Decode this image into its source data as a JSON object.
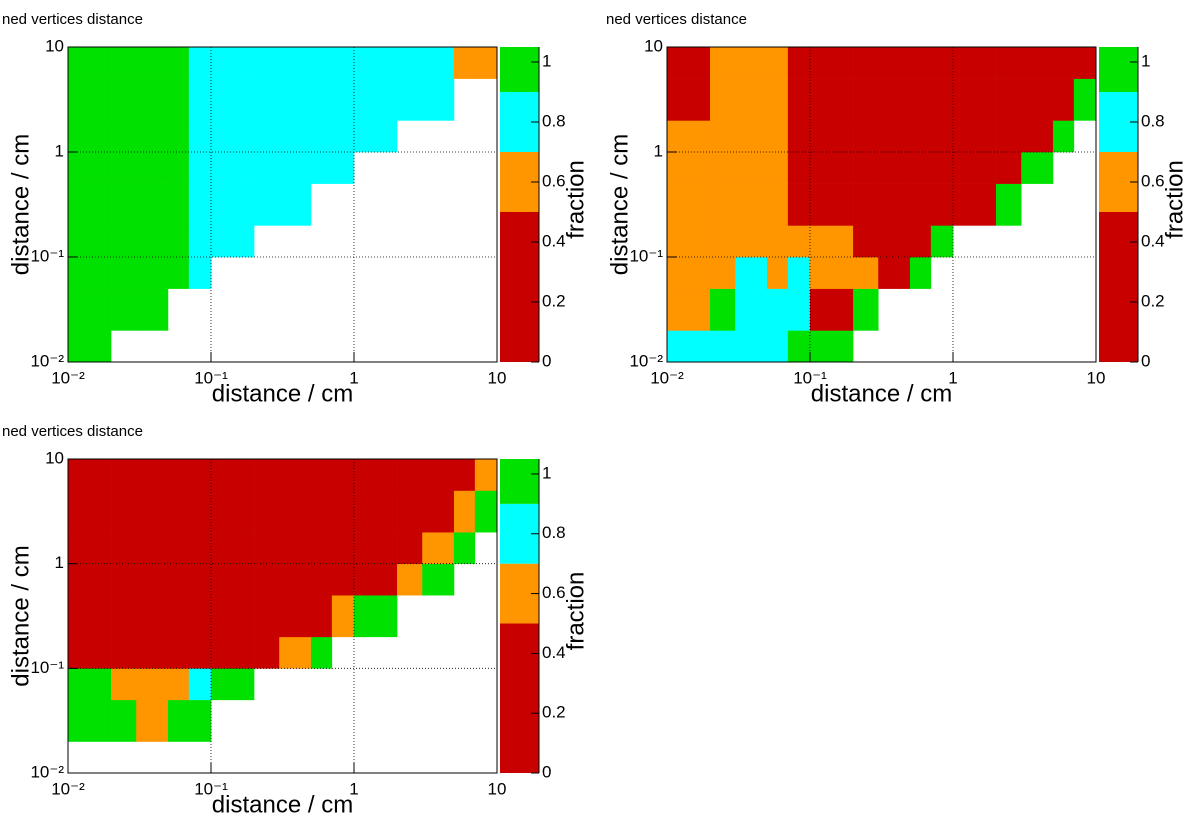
{
  "chart_data": [
    {
      "type": "heatmap",
      "title": "ned vertices distance",
      "xlabel": "distance / cm",
      "ylabel": "distance / cm",
      "zlabel": "fraction",
      "log_x": true,
      "log_y": true,
      "grid": true,
      "xlim": [
        0.01,
        10
      ],
      "ylim": [
        0.01,
        10
      ],
      "zlim": [
        0,
        1.05
      ],
      "xticks": [
        {
          "value": 0.01,
          "label": "10⁻²"
        },
        {
          "value": 0.1,
          "label": "10⁻¹"
        },
        1,
        10
      ],
      "yticks": [
        {
          "value": 0.01,
          "label": "10⁻²"
        },
        {
          "value": 0.1,
          "label": "10⁻¹"
        },
        1,
        10
      ],
      "zticks": [
        0,
        0.2,
        0.4,
        0.6,
        0.8,
        1
      ],
      "palette": [
        {
          "min": 0,
          "max": 0.5,
          "color": "#c80000"
        },
        {
          "min": 0.5,
          "max": 0.7,
          "color": "#ff9600"
        },
        {
          "min": 0.7,
          "max": 0.9,
          "color": "#00ffff"
        },
        {
          "min": 0.9,
          "max": 1.05,
          "color": "#00e100"
        }
      ],
      "xbins": [
        0.01,
        0.02,
        0.03,
        0.05,
        0.07,
        0.1,
        0.2,
        0.3,
        0.5,
        0.7,
        1,
        2,
        3,
        5,
        7,
        10
      ],
      "ybins": [
        0.01,
        0.02,
        0.05,
        0.1,
        0.2,
        0.5,
        1,
        2,
        5,
        10
      ],
      "z": [
        [
          1,
          null,
          null,
          null,
          null,
          null,
          null,
          null,
          null,
          null,
          null,
          null,
          null,
          null,
          null
        ],
        [
          1,
          1,
          1,
          null,
          null,
          null,
          null,
          null,
          null,
          null,
          null,
          null,
          null,
          null,
          null
        ],
        [
          1,
          1,
          1,
          1,
          0.85,
          null,
          null,
          null,
          null,
          null,
          null,
          null,
          null,
          null,
          null
        ],
        [
          1,
          1,
          1,
          1,
          0.85,
          0.85,
          null,
          null,
          null,
          null,
          null,
          null,
          null,
          null,
          null
        ],
        [
          1,
          1,
          1,
          1,
          0.85,
          0.85,
          0.85,
          0.85,
          null,
          null,
          null,
          null,
          null,
          null,
          null
        ],
        [
          1,
          1,
          1,
          1,
          0.85,
          0.85,
          0.85,
          0.85,
          0.85,
          0.85,
          null,
          null,
          null,
          null,
          null
        ],
        [
          1,
          1,
          1,
          1,
          0.85,
          0.85,
          0.85,
          0.85,
          0.85,
          0.85,
          0.85,
          null,
          null,
          null,
          null
        ],
        [
          1,
          1,
          1,
          1,
          0.85,
          0.85,
          0.85,
          0.85,
          0.85,
          0.85,
          0.85,
          0.85,
          0.8,
          null,
          null
        ],
        [
          1,
          1,
          1,
          1,
          0.85,
          0.85,
          0.85,
          0.85,
          0.85,
          0.85,
          0.85,
          0.8,
          0.75,
          0.7,
          0.65
        ]
      ]
    },
    {
      "type": "heatmap",
      "title": "ned vertices distance",
      "xlabel": "distance / cm",
      "ylabel": "distance / cm",
      "zlabel": "fraction",
      "log_x": true,
      "log_y": true,
      "grid": true,
      "xlim": [
        0.01,
        10
      ],
      "ylim": [
        0.01,
        10
      ],
      "zlim": [
        0,
        1.05
      ],
      "xticks": [
        {
          "value": 0.01,
          "label": "10⁻²"
        },
        {
          "value": 0.1,
          "label": "10⁻¹"
        },
        1,
        10
      ],
      "yticks": [
        {
          "value": 0.01,
          "label": "10⁻²"
        },
        {
          "value": 0.1,
          "label": "10⁻¹"
        },
        1,
        10
      ],
      "zticks": [
        0,
        0.2,
        0.4,
        0.6,
        0.8,
        1
      ],
      "palette": [
        {
          "min": 0,
          "max": 0.5,
          "color": "#c80000"
        },
        {
          "min": 0.5,
          "max": 0.7,
          "color": "#ff9600"
        },
        {
          "min": 0.7,
          "max": 0.9,
          "color": "#00ffff"
        },
        {
          "min": 0.9,
          "max": 1.05,
          "color": "#00e100"
        }
      ],
      "xbins": [
        0.01,
        0.02,
        0.03,
        0.05,
        0.07,
        0.1,
        0.2,
        0.3,
        0.5,
        0.7,
        1,
        2,
        3,
        5,
        7,
        10
      ],
      "ybins": [
        0.01,
        0.02,
        0.05,
        0.1,
        0.2,
        0.5,
        1,
        2,
        5,
        10
      ],
      "z": [
        [
          0.8,
          0.8,
          0.8,
          0.8,
          1,
          1,
          null,
          null,
          null,
          null,
          null,
          null,
          null,
          null,
          null
        ],
        [
          0.6,
          1,
          0.8,
          0.8,
          0.8,
          0.3,
          1,
          null,
          null,
          null,
          null,
          null,
          null,
          null,
          null
        ],
        [
          0.6,
          0.6,
          0.8,
          0.6,
          0.8,
          0.6,
          0.6,
          0.3,
          1,
          null,
          null,
          null,
          null,
          null,
          null
        ],
        [
          0.6,
          0.6,
          0.6,
          0.6,
          0.6,
          0.6,
          0.3,
          0.3,
          0.3,
          1,
          null,
          null,
          null,
          null,
          null
        ],
        [
          0.6,
          0.6,
          0.6,
          0.6,
          0.3,
          0.3,
          0.3,
          0.3,
          0.3,
          0.3,
          0.3,
          1,
          null,
          null,
          null
        ],
        [
          0.6,
          0.6,
          0.6,
          0.6,
          0.3,
          0.3,
          0.3,
          0.3,
          0.3,
          0.3,
          0.3,
          0.3,
          1,
          null,
          null
        ],
        [
          0.6,
          0.6,
          0.6,
          0.6,
          0.3,
          0.3,
          0.3,
          0.3,
          0.3,
          0.3,
          0.3,
          0.3,
          0.3,
          1,
          null
        ],
        [
          0.3,
          0.6,
          0.6,
          0.6,
          0.3,
          0.3,
          0.3,
          0.3,
          0.3,
          0.3,
          0.3,
          0.3,
          0.3,
          0.3,
          1
        ],
        [
          0.3,
          0.6,
          0.6,
          0.6,
          0.3,
          0.3,
          0.3,
          0.3,
          0.3,
          0.3,
          0.3,
          0.3,
          0.3,
          0.3,
          0.3
        ]
      ]
    },
    {
      "type": "heatmap",
      "title": "ned vertices distance",
      "xlabel": "distance / cm",
      "ylabel": "distance / cm",
      "zlabel": "fraction",
      "log_x": true,
      "log_y": true,
      "grid": true,
      "xlim": [
        0.01,
        10
      ],
      "ylim": [
        0.01,
        10
      ],
      "zlim": [
        0,
        1.05
      ],
      "xticks": [
        {
          "value": 0.01,
          "label": "10⁻²"
        },
        {
          "value": 0.1,
          "label": "10⁻¹"
        },
        1,
        10
      ],
      "yticks": [
        {
          "value": 0.01,
          "label": "10⁻²"
        },
        {
          "value": 0.1,
          "label": "10⁻¹"
        },
        1,
        10
      ],
      "zticks": [
        0,
        0.2,
        0.4,
        0.6,
        0.8,
        1
      ],
      "palette": [
        {
          "min": 0,
          "max": 0.5,
          "color": "#c80000"
        },
        {
          "min": 0.5,
          "max": 0.7,
          "color": "#ff9600"
        },
        {
          "min": 0.7,
          "max": 0.9,
          "color": "#00ffff"
        },
        {
          "min": 0.9,
          "max": 1.05,
          "color": "#00e100"
        }
      ],
      "xbins": [
        0.01,
        0.02,
        0.03,
        0.05,
        0.07,
        0.1,
        0.2,
        0.3,
        0.5,
        0.7,
        1,
        2,
        3,
        5,
        7,
        10
      ],
      "ybins": [
        0.01,
        0.02,
        0.05,
        0.1,
        0.2,
        0.5,
        1,
        2,
        5,
        10
      ],
      "z": [
        [
          null,
          null,
          null,
          null,
          null,
          null,
          null,
          null,
          null,
          null,
          null,
          null,
          null,
          null,
          null
        ],
        [
          1,
          1,
          0.6,
          1,
          1,
          null,
          null,
          null,
          null,
          null,
          null,
          null,
          null,
          null,
          null
        ],
        [
          1,
          0.6,
          0.6,
          0.6,
          0.8,
          1,
          null,
          null,
          null,
          null,
          null,
          null,
          null,
          null,
          null
        ],
        [
          0.3,
          0.3,
          0.3,
          0.3,
          0.3,
          0.3,
          0.3,
          0.6,
          1,
          null,
          null,
          null,
          null,
          null,
          null
        ],
        [
          0.3,
          0.3,
          0.3,
          0.3,
          0.3,
          0.3,
          0.3,
          0.3,
          0.3,
          0.6,
          1,
          null,
          null,
          null,
          null
        ],
        [
          0.3,
          0.3,
          0.3,
          0.3,
          0.3,
          0.3,
          0.3,
          0.3,
          0.3,
          0.3,
          0.3,
          0.6,
          1,
          null,
          null
        ],
        [
          0.3,
          0.3,
          0.3,
          0.3,
          0.3,
          0.3,
          0.3,
          0.3,
          0.3,
          0.3,
          0.3,
          0.3,
          0.6,
          1,
          null
        ],
        [
          0.3,
          0.3,
          0.3,
          0.3,
          0.3,
          0.3,
          0.3,
          0.3,
          0.3,
          0.3,
          0.3,
          0.3,
          0.3,
          0.6,
          1
        ],
        [
          0.3,
          0.3,
          0.3,
          0.3,
          0.3,
          0.3,
          0.3,
          0.3,
          0.3,
          0.3,
          0.3,
          0.3,
          0.3,
          0.3,
          0.6
        ]
      ]
    }
  ]
}
